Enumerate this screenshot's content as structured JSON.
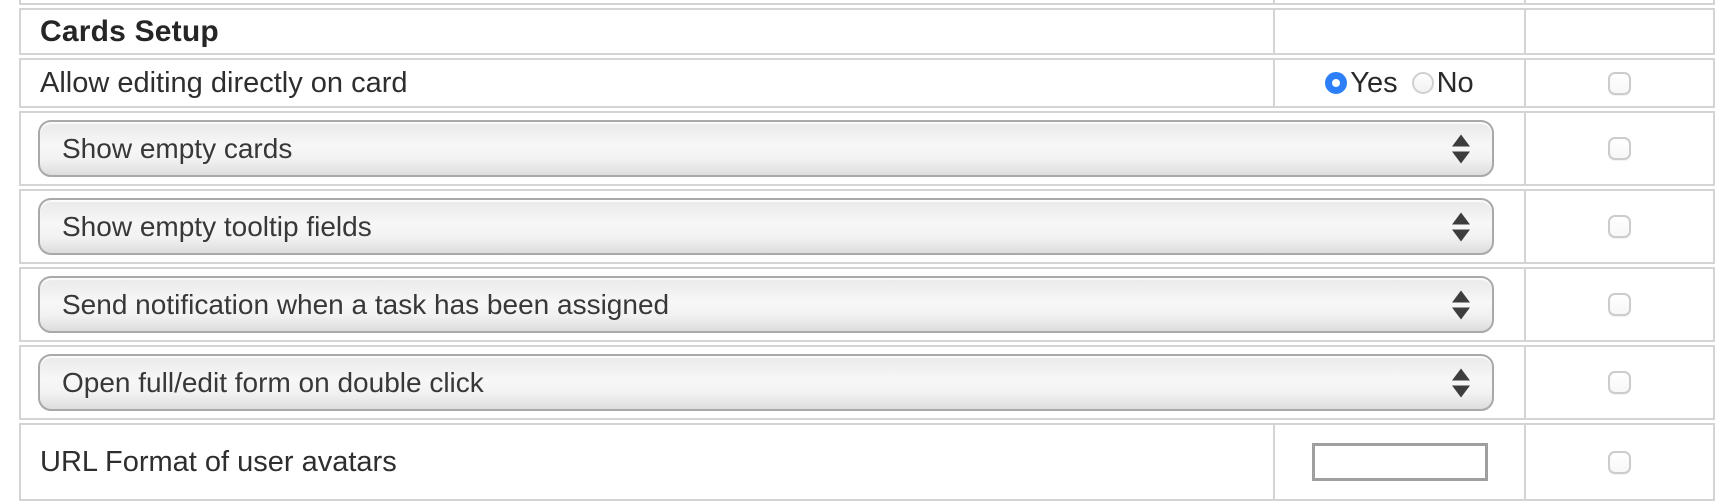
{
  "section": {
    "title": "Cards Setup"
  },
  "radio_row": {
    "label": "Allow editing directly on card",
    "options": {
      "yes": "Yes",
      "no": "No"
    },
    "selected": "Yes"
  },
  "select_rows": [
    {
      "value": "Show empty cards",
      "checked": false
    },
    {
      "value": "Show empty tooltip fields",
      "checked": false
    },
    {
      "value": "Send notification when a task has been assigned",
      "checked": false
    },
    {
      "value": "Open full/edit form on double click",
      "checked": false
    }
  ],
  "url_row": {
    "label": "URL Format of user avatars",
    "value": "",
    "checked": false
  },
  "radio_row_checked": false,
  "colors": {
    "radio_selected": "#2d7ff9",
    "table_border": "#d4d4d4",
    "select_border": "#a9a9a9",
    "text": "#2e2e2e"
  }
}
